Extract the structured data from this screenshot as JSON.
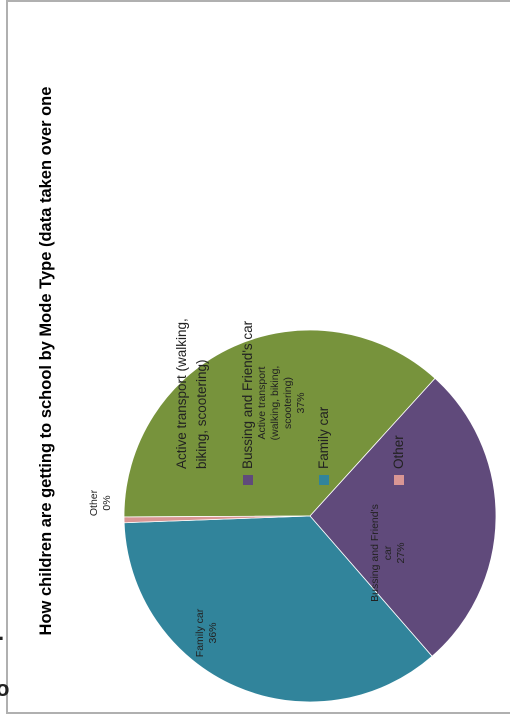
{
  "chart_data": {
    "type": "pie",
    "title": "How children are getting to school by Mode Type (data taken over one",
    "slices": [
      {
        "name": "Active transport (walking, biking, scootering)",
        "value": 37,
        "label": "Active transport (walking, biking, scootering)",
        "pct": "37%",
        "color": "#77933c"
      },
      {
        "name": "Bussing and Friend's car",
        "value": 27,
        "label": "Bussing and Friend's car",
        "pct": "27%",
        "color": "#604a7b"
      },
      {
        "name": "Family car",
        "value": 36,
        "label": "Family car",
        "pct": "36%",
        "color": "#31849b"
      },
      {
        "name": "Other",
        "value": 0.5,
        "label": "Other",
        "pct": "0%",
        "color": "#d99694"
      }
    ],
    "legend": [
      {
        "text": "Active transport (walking, biking, scootering)",
        "color": "#77933c"
      },
      {
        "text": "Bussing and Friend's car",
        "color": "#604a7b"
      },
      {
        "text": "Family car",
        "color": "#31849b"
      },
      {
        "text": "Other",
        "color": "#d99694"
      }
    ],
    "legend_placement": "right",
    "orientation": "rotated 90 degrees clockwise"
  }
}
